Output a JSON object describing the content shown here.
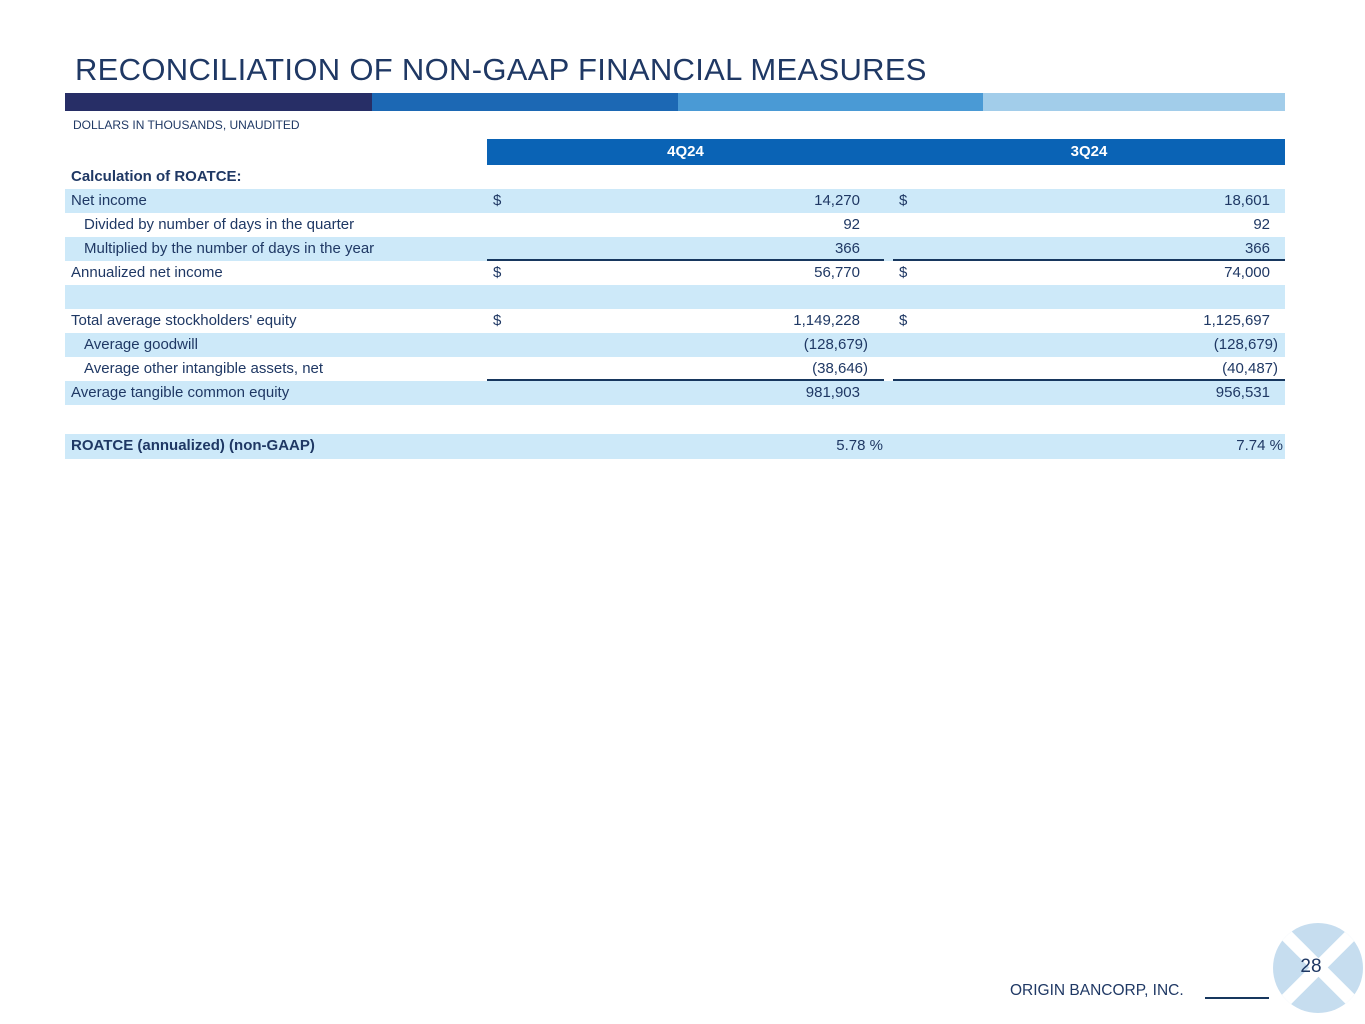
{
  "page": {
    "title": "RECONCILIATION OF NON-GAAP FINANCIAL MEASURES",
    "subtitle": "DOLLARS IN THOUSANDS, UNAUDITED",
    "footer_company": "ORIGIN BANCORP, INC.",
    "page_number": "28"
  },
  "colors": {
    "text_navy": "#1F3864",
    "header_bar_blue": "#0A63B5",
    "row_stripe_blue": "#CDE9F9",
    "underline_navy": "#17375E",
    "accent_bar": [
      "#272E66",
      "#1C68B4",
      "#4A9AD5",
      "#A2CDEA"
    ],
    "logo_circle_blue": "#C6DDEF"
  },
  "table": {
    "columns": [
      "4Q24",
      "3Q24"
    ],
    "rows": [
      {
        "label": "Calculation of ROATCE:",
        "section": true
      },
      {
        "label": "Net income",
        "v1": "14,270",
        "v2": "18,601",
        "dollar": true,
        "stripe": true
      },
      {
        "label": "Divided by number of days in the quarter",
        "v1": "92",
        "v2": "92",
        "indent": true
      },
      {
        "label": "Multiplied by the number of days in the year",
        "v1": "366",
        "v2": "366",
        "indent": true,
        "stripe": true,
        "underline": true
      },
      {
        "label": "Annualized net income",
        "v1": "56,770",
        "v2": "74,000",
        "dollar": true
      },
      {
        "spacer": true,
        "stripe": true
      },
      {
        "label": "Total average stockholders' equity",
        "v1": "1,149,228",
        "v2": "1,125,697",
        "dollar": true
      },
      {
        "label": "Average goodwill",
        "v1": "(128,679)",
        "v2": "(128,679)",
        "indent": true,
        "stripe": true,
        "paren": true
      },
      {
        "label": "Average other intangible assets, net",
        "v1": "(38,646)",
        "v2": "(40,487)",
        "indent": true,
        "underline": true,
        "paren": true
      },
      {
        "label": "Average tangible common equity",
        "v1": "981,903",
        "v2": "956,531",
        "stripe": true
      },
      {
        "gap": true
      },
      {
        "label": "ROATCE (annualized) (non-GAAP)",
        "v1": "5.78 %",
        "v2": "7.74 %",
        "stripe": true,
        "bold": true,
        "percent": true
      }
    ]
  }
}
